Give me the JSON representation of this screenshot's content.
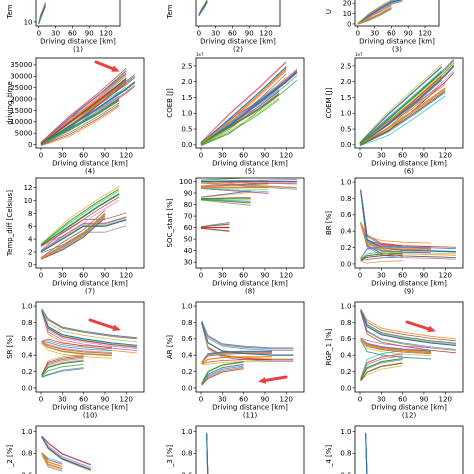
{
  "chart_data": [
    {
      "type": "line",
      "ylabel": "Tem",
      "xlabel": "Driving distance [km]",
      "caption": "(1)",
      "xticks": [
        "0",
        "30",
        "60",
        "90",
        "120"
      ],
      "yticks": [
        "10"
      ],
      "xlim": [
        -5,
        145
      ],
      "ylim": [
        8,
        22
      ],
      "series": [
        {
          "x": [
            0,
            3,
            6,
            9,
            12
          ],
          "y": [
            9,
            12,
            14,
            16,
            18
          ]
        }
      ]
    },
    {
      "type": "line",
      "ylabel": "Tem",
      "xlabel": "Driving distance [km]",
      "caption": "(2)",
      "xticks": [
        "0",
        "30",
        "60",
        "90",
        "120"
      ],
      "yticks": [],
      "xlim": [
        -5,
        145
      ],
      "ylim": [
        0,
        22
      ],
      "series": [
        {
          "x": [
            0,
            5,
            10,
            15
          ],
          "y": [
            8,
            12,
            15,
            19
          ]
        }
      ]
    },
    {
      "type": "line",
      "ylabel": "U",
      "xlabel": "Driving distance [km]",
      "caption": "(3)",
      "xticks": [
        "0",
        "30",
        "60",
        "90",
        "120"
      ],
      "yticks": [
        "0",
        "10",
        "20"
      ],
      "xlim": [
        -5,
        145
      ],
      "ylim": [
        -2,
        26
      ],
      "series": [
        {
          "x": [
            0,
            20,
            40,
            60,
            80
          ],
          "y": [
            0,
            8,
            15,
            21,
            24
          ]
        },
        {
          "x": [
            0,
            20,
            40,
            60
          ],
          "y": [
            0,
            5,
            10,
            16
          ]
        }
      ]
    },
    {
      "type": "line",
      "ylabel": "driving_time",
      "xlabel": "Driving distance [km]",
      "caption": "(4)",
      "xticks": [
        "0",
        "30",
        "60",
        "90",
        "120"
      ],
      "yticks": [
        "0",
        "5000",
        "10000",
        "15000",
        "20000",
        "25000",
        "30000",
        "35000"
      ],
      "xlim": [
        -7,
        145
      ],
      "ylim": [
        -1500,
        38000
      ],
      "series": [
        {
          "x": [
            0,
            40,
            80,
            120,
            132
          ],
          "y": [
            300,
            8000,
            16000,
            24500,
            27500
          ]
        },
        {
          "x": [
            0,
            40,
            80,
            120
          ],
          "y": [
            500,
            10000,
            20000,
            31000
          ]
        },
        {
          "x": [
            0,
            40,
            80,
            110
          ],
          "y": [
            200,
            7000,
            14000,
            20000
          ]
        },
        {
          "x": [
            0,
            50,
            100,
            120
          ],
          "y": [
            400,
            12000,
            24000,
            29000
          ]
        }
      ]
    },
    {
      "type": "line",
      "ylabel": "COEB [J]",
      "xlabel": "Driving distance [km]",
      "caption": "(5)",
      "xticks": [
        "0",
        "30",
        "60",
        "90",
        "120"
      ],
      "yticks": [
        "0.0",
        "0.5",
        "1.0",
        "1.5",
        "2.0",
        "2.5"
      ],
      "multiplier": "1e7",
      "xlim": [
        -7,
        145
      ],
      "ylim": [
        -0.1,
        2.75
      ],
      "series": [
        {
          "x": [
            0,
            40,
            80,
            120,
            135
          ],
          "y": [
            0.02,
            0.6,
            1.3,
            2.0,
            2.3
          ]
        },
        {
          "x": [
            0,
            40,
            80,
            120
          ],
          "y": [
            0.03,
            0.75,
            1.55,
            2.4
          ]
        },
        {
          "x": [
            0,
            40,
            80,
            110
          ],
          "y": [
            0.02,
            0.55,
            1.1,
            1.6
          ]
        }
      ]
    },
    {
      "type": "line",
      "ylabel": "COEM [J]",
      "xlabel": "Driving distance [km]",
      "caption": "(6)",
      "xticks": [
        "0",
        "30",
        "60",
        "90",
        "120"
      ],
      "yticks": [
        "0.0",
        "0.5",
        "1.0",
        "1.5",
        "2.0",
        "2.5"
      ],
      "multiplier": "1e7",
      "xlim": [
        -7,
        145
      ],
      "ylim": [
        -0.1,
        2.75
      ],
      "series": [
        {
          "x": [
            0,
            40,
            80,
            120,
            132
          ],
          "y": [
            0.02,
            0.65,
            1.4,
            2.2,
            2.5
          ]
        },
        {
          "x": [
            0,
            40,
            80,
            120
          ],
          "y": [
            0.02,
            0.55,
            1.15,
            1.8
          ]
        },
        {
          "x": [
            0,
            40,
            80,
            115
          ],
          "y": [
            0.03,
            0.8,
            1.6,
            2.3
          ]
        }
      ]
    },
    {
      "type": "line",
      "ylabel": "Temp_diff [Celsius]",
      "xlabel": "Driving distance [km]",
      "caption": "(7)",
      "xticks": [
        "0",
        "30",
        "60",
        "90",
        "120"
      ],
      "yticks": [
        "0",
        "2",
        "4",
        "6",
        "8",
        "10",
        "12"
      ],
      "xlim": [
        -7,
        145
      ],
      "ylim": [
        -0.5,
        13.5
      ],
      "series": [
        {
          "x": [
            0,
            30,
            60,
            90,
            120
          ],
          "y": [
            2,
            4,
            6,
            6,
            7
          ]
        },
        {
          "x": [
            0,
            30,
            60,
            90
          ],
          "y": [
            1,
            3,
            5,
            8
          ]
        },
        {
          "x": [
            0,
            40,
            80,
            110
          ],
          "y": [
            3,
            6,
            9,
            11
          ]
        }
      ]
    },
    {
      "type": "line",
      "ylabel": "SOC_start [%]",
      "xlabel": "Driving distance [km]",
      "caption": "(8)",
      "xticks": [
        "0",
        "30",
        "60",
        "90",
        "120"
      ],
      "yticks": [
        "30",
        "40",
        "50",
        "60",
        "70",
        "80",
        "90",
        "100"
      ],
      "xlim": [
        -7,
        145
      ],
      "ylim": [
        25,
        103
      ],
      "series": [
        {
          "x": [
            0,
            135
          ],
          "y": [
            100,
            100
          ]
        },
        {
          "x": [
            0,
            95
          ],
          "y": [
            95,
            95
          ]
        },
        {
          "x": [
            0,
            70
          ],
          "y": [
            85,
            85
          ]
        },
        {
          "x": [
            0,
            40
          ],
          "y": [
            60,
            60
          ]
        }
      ]
    },
    {
      "type": "line",
      "ylabel": "BR [%]",
      "xlabel": "Driving distance [km]",
      "caption": "(9)",
      "xticks": [
        "0",
        "30",
        "60",
        "90",
        "120"
      ],
      "yticks": [
        "0.0",
        "0.2",
        "0.4",
        "0.6",
        "0.8",
        "1.0"
      ],
      "xlim": [
        -7,
        145
      ],
      "ylim": [
        -0.05,
        1.05
      ],
      "series": [
        {
          "x": [
            1,
            10,
            30,
            60,
            100,
            135
          ],
          "y": [
            0.9,
            0.3,
            0.2,
            0.17,
            0.16,
            0.15
          ]
        },
        {
          "x": [
            1,
            10,
            30,
            60,
            100
          ],
          "y": [
            0.5,
            0.25,
            0.2,
            0.18,
            0.17
          ]
        },
        {
          "x": [
            1,
            10,
            30,
            60
          ],
          "y": [
            0.05,
            0.1,
            0.12,
            0.13
          ]
        }
      ]
    },
    {
      "type": "line",
      "ylabel": "SR [%]",
      "xlabel": "Driving distance [km]",
      "caption": "(10)",
      "xticks": [
        "0",
        "30",
        "60",
        "90",
        "120"
      ],
      "yticks": [
        "0.0",
        "0.2",
        "0.4",
        "0.6",
        "0.8",
        "1.0"
      ],
      "xlim": [
        -7,
        145
      ],
      "ylim": [
        -0.05,
        1.05
      ],
      "series": [
        {
          "x": [
            1,
            10,
            30,
            60,
            100,
            135
          ],
          "y": [
            0.95,
            0.75,
            0.65,
            0.6,
            0.55,
            0.52
          ]
        },
        {
          "x": [
            1,
            10,
            30,
            60,
            100
          ],
          "y": [
            0.55,
            0.5,
            0.45,
            0.42,
            0.4
          ]
        },
        {
          "x": [
            1,
            10,
            30,
            60
          ],
          "y": [
            0.15,
            0.25,
            0.3,
            0.33
          ]
        }
      ]
    },
    {
      "type": "line",
      "ylabel": "AR [%]",
      "xlabel": "Driving distance [km]",
      "caption": "(11)",
      "xticks": [
        "0",
        "30",
        "60",
        "90",
        "120"
      ],
      "yticks": [
        "0.0",
        "0.2",
        "0.4",
        "0.6",
        "0.8",
        "1.0"
      ],
      "xlim": [
        -7,
        145
      ],
      "ylim": [
        -0.05,
        1.05
      ],
      "series": [
        {
          "x": [
            1,
            10,
            30,
            60,
            100,
            130
          ],
          "y": [
            0.8,
            0.55,
            0.45,
            0.42,
            0.4,
            0.4
          ]
        },
        {
          "x": [
            1,
            10,
            30,
            60,
            100
          ],
          "y": [
            0.3,
            0.35,
            0.37,
            0.38,
            0.38
          ]
        },
        {
          "x": [
            1,
            10,
            30,
            60
          ],
          "y": [
            0.05,
            0.2,
            0.28,
            0.32
          ]
        }
      ]
    },
    {
      "type": "line",
      "ylabel": "RGP_1 [%]",
      "xlabel": "Driving distance [km]",
      "caption": "(12)",
      "xticks": [
        "0",
        "30",
        "60",
        "90",
        "120"
      ],
      "yticks": [
        "0.0",
        "0.2",
        "0.4",
        "0.6",
        "0.8",
        "1.0"
      ],
      "xlim": [
        -7,
        145
      ],
      "ylim": [
        -0.05,
        1.05
      ],
      "series": [
        {
          "x": [
            1,
            10,
            30,
            60,
            100,
            135
          ],
          "y": [
            0.95,
            0.75,
            0.65,
            0.6,
            0.55,
            0.52
          ]
        },
        {
          "x": [
            1,
            10,
            30,
            60,
            100
          ],
          "y": [
            0.6,
            0.52,
            0.48,
            0.45,
            0.43
          ]
        },
        {
          "x": [
            1,
            10,
            30,
            60
          ],
          "y": [
            0.1,
            0.25,
            0.32,
            0.36
          ]
        }
      ]
    },
    {
      "type": "line",
      "ylabel": "_2 [%]",
      "xlabel": "",
      "caption": "",
      "xticks": [],
      "yticks": [
        "1.0",
        "0.8",
        "0.6"
      ],
      "xlim": [
        -7,
        145
      ],
      "ylim": [
        0.5,
        1.05
      ],
      "series": [
        {
          "x": [
            1,
            10,
            30,
            50,
            70
          ],
          "y": [
            0.95,
            0.85,
            0.75,
            0.7,
            0.65
          ]
        },
        {
          "x": [
            1,
            10,
            30
          ],
          "y": [
            0.8,
            0.72,
            0.68
          ]
        }
      ]
    },
    {
      "type": "line",
      "ylabel": "_3 [%]",
      "xlabel": "",
      "caption": "",
      "xticks": [],
      "yticks": [
        "1.0",
        "0.8",
        "0.6"
      ],
      "xlim": [
        -7,
        145
      ],
      "ylim": [
        0.5,
        1.05
      ],
      "series": [
        {
          "x": [
            8,
            9,
            10
          ],
          "y": [
            0.98,
            0.7,
            0.55
          ]
        }
      ]
    },
    {
      "type": "line",
      "ylabel": "_4 [%]",
      "xlabel": "",
      "caption": "",
      "xticks": [],
      "yticks": [
        "1.0",
        "0.8",
        "0.6"
      ],
      "xlim": [
        -7,
        145
      ],
      "ylim": [
        0.5,
        1.05
      ],
      "series": [
        {
          "x": [
            8,
            9,
            10
          ],
          "y": [
            0.98,
            0.75,
            0.55
          ]
        }
      ]
    }
  ]
}
